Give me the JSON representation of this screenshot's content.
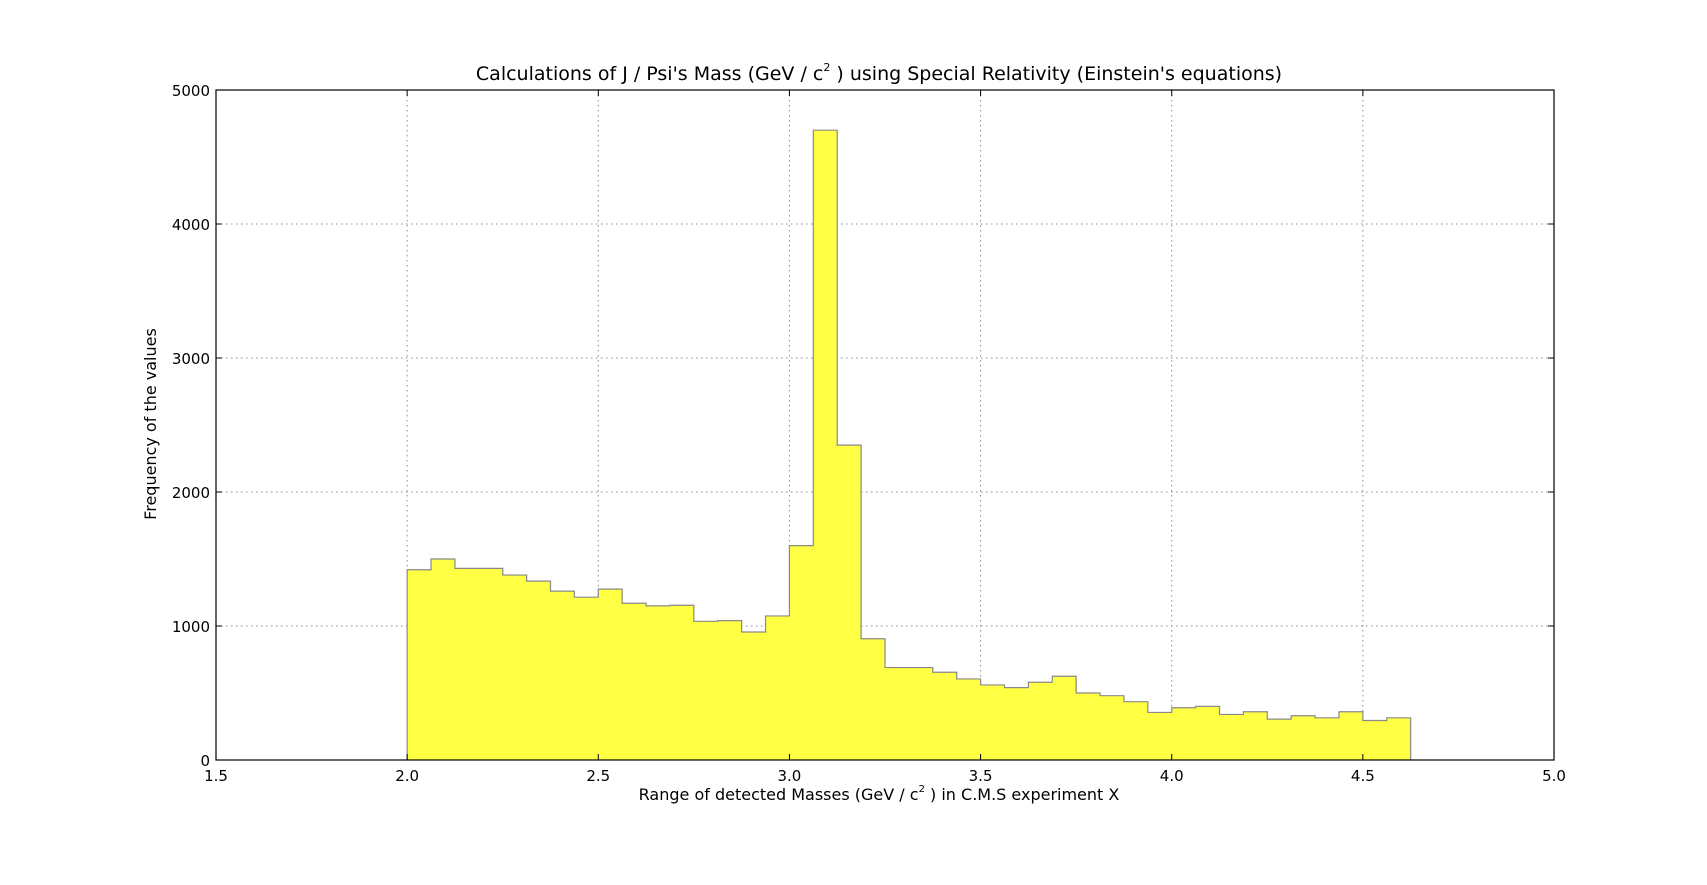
{
  "chart_data": {
    "type": "bar",
    "title": {
      "prefix": "Calculations of J / Psi's Mass (GeV / c",
      "superscript": "2",
      "suffix": " ) using Special Relativity (Einstein's equations)"
    },
    "xlabel": {
      "prefix": "Range of detected Masses (GeV / c",
      "superscript": "2",
      "suffix": " ) in C.M.S experiment X"
    },
    "ylabel": "Frequency of the values",
    "xlim": [
      1.5,
      5.0
    ],
    "ylim": [
      0,
      5000
    ],
    "xticks": [
      "1.5",
      "2.0",
      "2.5",
      "3.0",
      "3.5",
      "4.0",
      "4.5",
      "5.0"
    ],
    "yticks": [
      "0",
      "1000",
      "2000",
      "3000",
      "4000",
      "5000"
    ],
    "grid": true,
    "bin_start": 2.0,
    "bin_width": 0.0625,
    "values": [
      1420,
      1500,
      1430,
      1430,
      1380,
      1335,
      1260,
      1215,
      1275,
      1170,
      1150,
      1155,
      1035,
      1040,
      955,
      1075,
      1600,
      4700,
      2350,
      905,
      690,
      690,
      655,
      605,
      560,
      540,
      580,
      625,
      500,
      480,
      435,
      355,
      390,
      400,
      340,
      360,
      305,
      330,
      315,
      360,
      295,
      315
    ],
    "colors": {
      "fill": "#ffff44",
      "edge": "#8a8a8a",
      "grid": "#8c8c8c",
      "axes": "#000000"
    }
  }
}
